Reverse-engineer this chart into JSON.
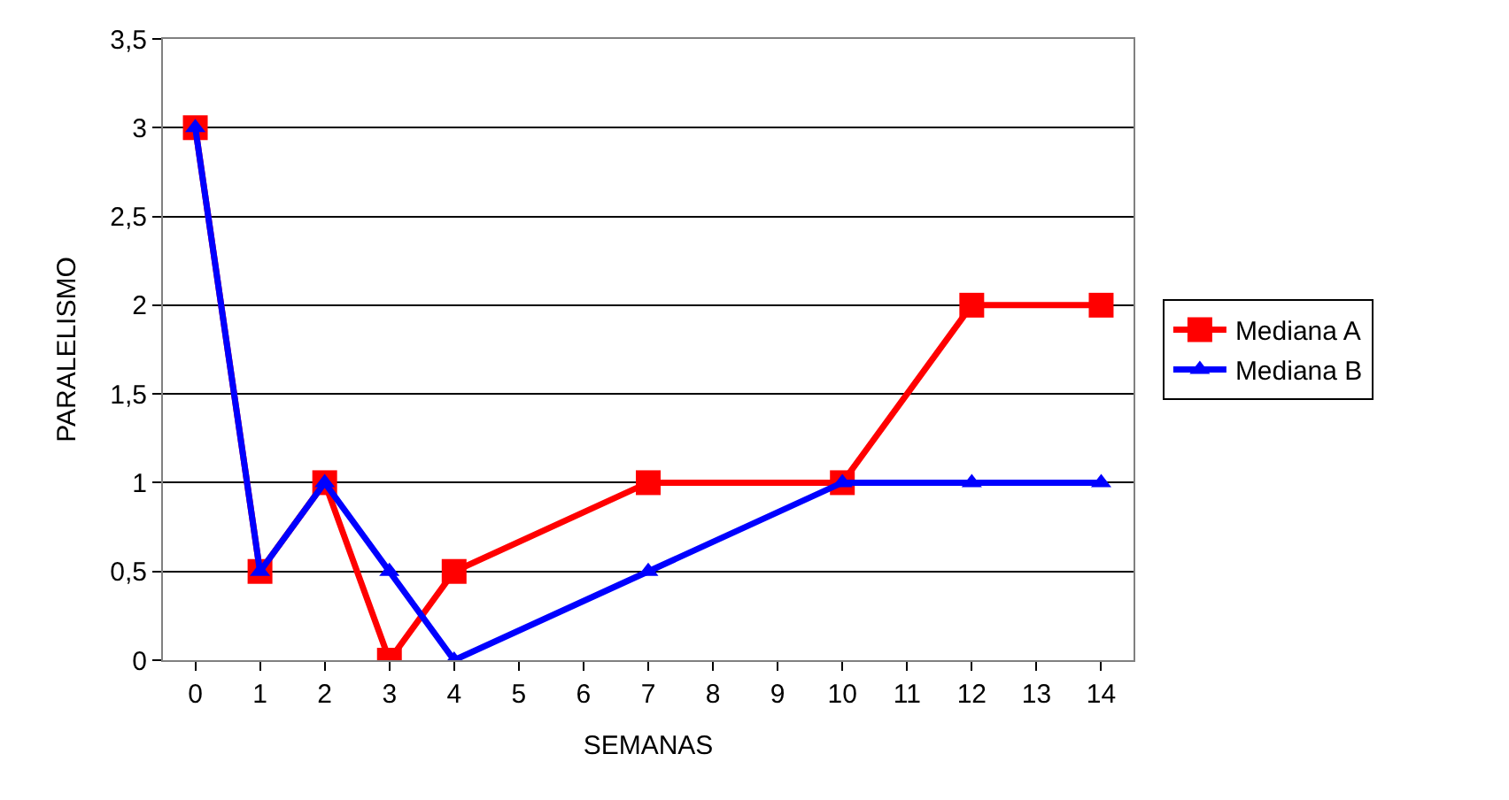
{
  "chart_data": {
    "type": "line",
    "xlabel": "SEMANAS",
    "ylabel": "PARALELISMO",
    "x": [
      0,
      1,
      2,
      3,
      4,
      7,
      10,
      12,
      14
    ],
    "series": [
      {
        "name": "Mediana A",
        "color": "#ff0000",
        "marker": "square",
        "values": [
          3,
          0.5,
          1,
          0,
          0.5,
          1,
          1,
          2,
          2
        ]
      },
      {
        "name": "Mediana B",
        "color": "#0000ff",
        "marker": "triangle",
        "values": [
          3,
          0.5,
          1,
          0.5,
          0,
          0.5,
          1,
          1,
          1
        ]
      }
    ],
    "xlim": [
      -0.5,
      14.5
    ],
    "xticks": [
      0,
      1,
      2,
      3,
      4,
      5,
      6,
      7,
      8,
      9,
      10,
      11,
      12,
      13,
      14
    ],
    "ylim": [
      0,
      3.5
    ],
    "yticks": [
      0,
      {
        "value": 0.5,
        "label": "0,5"
      },
      1,
      {
        "value": 1.5,
        "label": "1,5"
      },
      2,
      {
        "value": 2.5,
        "label": "2,5"
      },
      3,
      {
        "value": 3.5,
        "label": "3,5"
      }
    ],
    "grid": "y",
    "legend": "right",
    "line_style": "solid"
  }
}
